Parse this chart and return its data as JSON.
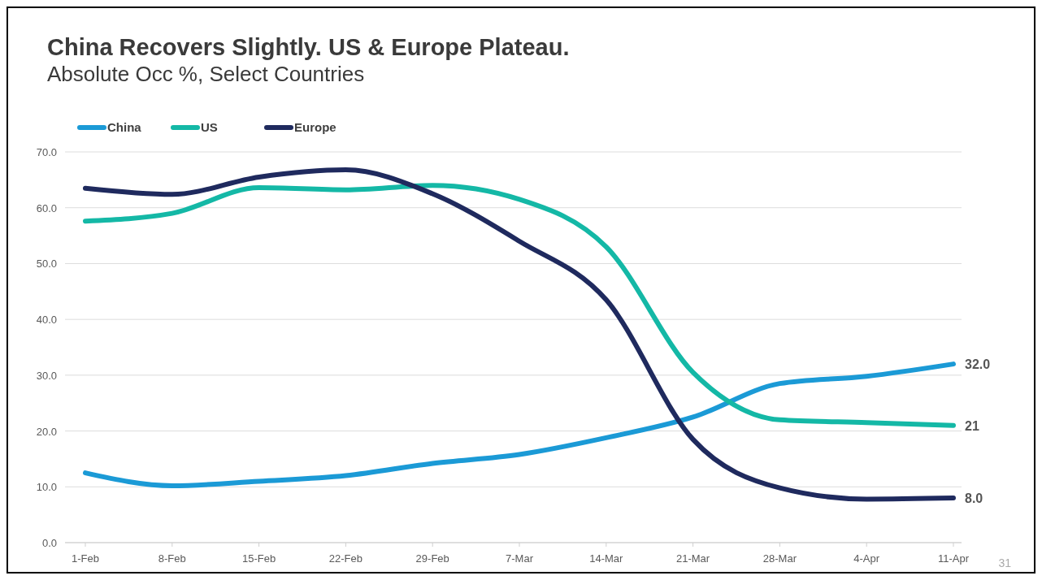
{
  "chart_data": {
    "type": "line",
    "title": "China Recovers Slightly. US & Europe Plateau.",
    "subtitle": "Absolute Occ %, Select Countries",
    "categories": [
      "1-Feb",
      "8-Feb",
      "15-Feb",
      "22-Feb",
      "29-Feb",
      "7-Mar",
      "14-Mar",
      "21-Mar",
      "28-Mar",
      "4-Apr",
      "11-Apr"
    ],
    "series": [
      {
        "name": "China",
        "color": "#1b9ad6",
        "values": [
          12.5,
          10.2,
          11.0,
          12.0,
          14.2,
          15.8,
          18.8,
          22.5,
          28.5,
          29.8,
          32.0
        ],
        "value_labels": [
          null,
          null,
          null,
          null,
          null,
          null,
          null,
          null,
          null,
          null,
          "32.0"
        ]
      },
      {
        "name": "US",
        "color": "#14b8a6",
        "values": [
          57.6,
          59.0,
          63.6,
          63.2,
          64.0,
          61.5,
          53.0,
          30.5,
          22.0,
          21.5,
          21.0
        ],
        "value_labels": [
          null,
          null,
          null,
          null,
          null,
          null,
          null,
          null,
          null,
          null,
          "21"
        ]
      },
      {
        "name": "Europe",
        "color": "#1f2a5e",
        "values": [
          63.5,
          62.4,
          65.5,
          66.8,
          62.5,
          54.0,
          43.5,
          18.5,
          9.8,
          7.8,
          8.0
        ],
        "value_labels": [
          null,
          null,
          null,
          null,
          null,
          null,
          null,
          null,
          null,
          null,
          "8.0"
        ]
      }
    ],
    "ylim": [
      0,
      70
    ],
    "yticks": [
      {
        "value": 0,
        "label": "0.0"
      },
      {
        "value": 10,
        "label": "10.0"
      },
      {
        "value": 20,
        "label": "20.0"
      },
      {
        "value": 30,
        "label": "30.0"
      },
      {
        "value": 40,
        "label": "40.0"
      },
      {
        "value": 50,
        "label": "50.0"
      },
      {
        "value": 60,
        "label": "60.0"
      },
      {
        "value": 70,
        "label": "70.0"
      }
    ],
    "grid": "y",
    "legend": "top left",
    "line_style": "solid",
    "marker": "none",
    "annotations": [
      "31"
    ]
  }
}
